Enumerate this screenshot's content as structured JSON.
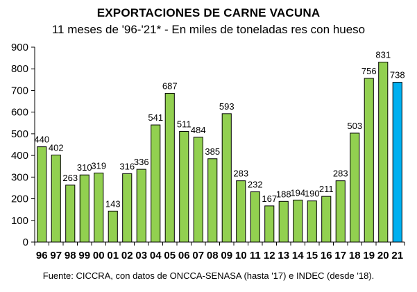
{
  "chart_data": {
    "type": "bar",
    "title": "EXPORTACIONES DE CARNE VACUNA",
    "subtitle": "11 meses de '96-'21* - En miles de toneladas res con hueso",
    "source": "Fuente: CICCRA, con datos de ONCCA-SENASA (hasta '17) e INDEC (desde '18).",
    "categories": [
      "96",
      "97",
      "98",
      "99",
      "00",
      "01",
      "02",
      "03",
      "04",
      "05",
      "06",
      "07",
      "08",
      "09",
      "10",
      "11",
      "12",
      "13",
      "14",
      "15",
      "16",
      "17",
      "18",
      "19",
      "20",
      "21"
    ],
    "values": [
      440,
      402,
      263,
      310,
      319,
      143,
      316,
      336,
      541,
      687,
      511,
      484,
      385,
      593,
      283,
      232,
      167,
      188,
      194,
      190,
      211,
      283,
      503,
      756,
      831,
      738
    ],
    "ylim": [
      0,
      900
    ],
    "yticks": [
      0,
      100,
      200,
      300,
      400,
      500,
      600,
      700,
      800,
      900
    ],
    "grid": false,
    "legend": "none",
    "colors": {
      "bar": "#92d050",
      "highlight": "#00b0f0",
      "stroke": "#000000"
    },
    "highlight_categories": [
      "21"
    ]
  }
}
